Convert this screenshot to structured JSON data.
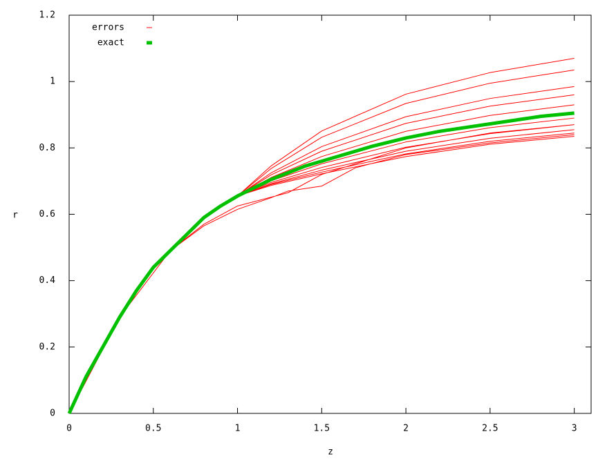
{
  "chart_data": {
    "type": "line",
    "xlabel": "z",
    "ylabel": "r",
    "xlim": [
      0,
      3.1
    ],
    "ylim": [
      0,
      1.2
    ],
    "xticks": [
      0,
      0.5,
      1,
      1.5,
      2,
      2.5,
      3
    ],
    "yticks": [
      0,
      0.2,
      0.4,
      0.6,
      0.8,
      1,
      1.2
    ],
    "legend": "top-left",
    "series": [
      {
        "name": "errors",
        "color": "#ff0000",
        "width": 1,
        "x": [
          0,
          0.3,
          0.6,
          0.8,
          1.0,
          1.2,
          1.5,
          2.0,
          2.5,
          3.0,
          null,
          0,
          0.3,
          0.6,
          0.8,
          1.0,
          1.2,
          1.5,
          2.0,
          2.5,
          3.0,
          null,
          0,
          0.3,
          0.6,
          0.8,
          1.0,
          1.2,
          1.5,
          2.0,
          2.5,
          3.0,
          null,
          0,
          0.3,
          0.6,
          0.8,
          1.0,
          1.2,
          1.5,
          2.0,
          2.5,
          3.0,
          null,
          0,
          0.3,
          0.6,
          0.8,
          1.0,
          1.2,
          1.5,
          2.0,
          2.5,
          3.0,
          null,
          0,
          0.3,
          0.6,
          0.8,
          1.0,
          1.2,
          1.5,
          2.0,
          2.5,
          3.0,
          null,
          0,
          0.3,
          0.6,
          0.8,
          1.0,
          1.2,
          1.5,
          2.0,
          2.5,
          3.0,
          null,
          0,
          0.3,
          0.6,
          0.8,
          1.0,
          1.2,
          1.5,
          2.0,
          2.5,
          3.0,
          null,
          0,
          0.3,
          0.6,
          0.8,
          1.0,
          1.2,
          1.5,
          2.0,
          2.5,
          3.0,
          null,
          0,
          0.3,
          0.6,
          0.8,
          1.0,
          1.2,
          1.5,
          2.0,
          2.5,
          3.0,
          null,
          0,
          0.3,
          0.6,
          0.8,
          1.0,
          1.2,
          1.3,
          1.5,
          1.7,
          2.0,
          2.5,
          3.0,
          null,
          0,
          0.3,
          0.6,
          0.8,
          1.0,
          1.3,
          1.5,
          2.0,
          2.5,
          3.0
        ],
        "values": [
          0,
          0.29,
          0.49,
          0.59,
          0.655,
          0.746,
          0.851,
          0.962,
          1.027,
          1.07,
          null,
          0,
          0.29,
          0.49,
          0.59,
          0.655,
          0.738,
          0.832,
          0.934,
          0.995,
          1.035,
          null,
          0,
          0.29,
          0.49,
          0.59,
          0.655,
          0.725,
          0.804,
          0.894,
          0.949,
          0.985,
          null,
          0,
          0.29,
          0.49,
          0.59,
          0.655,
          0.719,
          0.79,
          0.874,
          0.926,
          0.96,
          null,
          0,
          0.29,
          0.49,
          0.59,
          0.655,
          0.711,
          0.774,
          0.85,
          0.898,
          0.93,
          null,
          0,
          0.29,
          0.49,
          0.59,
          0.655,
          0.701,
          0.752,
          0.818,
          0.861,
          0.89,
          null,
          0,
          0.29,
          0.49,
          0.59,
          0.655,
          0.696,
          0.741,
          0.802,
          0.843,
          0.87,
          null,
          0,
          0.29,
          0.49,
          0.59,
          0.655,
          0.692,
          0.733,
          0.79,
          0.829,
          0.855,
          null,
          0,
          0.29,
          0.49,
          0.59,
          0.655,
          0.69,
          0.727,
          0.782,
          0.82,
          0.845,
          null,
          0,
          0.29,
          0.49,
          0.59,
          0.655,
          0.687,
          0.722,
          0.774,
          0.811,
          0.835,
          null,
          0,
          0.29,
          0.49,
          0.565,
          0.615,
          0.65,
          0.67,
          0.685,
          0.74,
          0.78,
          0.815,
          0.84,
          null,
          0,
          0.29,
          0.49,
          0.57,
          0.625,
          0.665,
          0.72,
          0.8,
          0.845,
          0.87
        ]
      },
      {
        "name": "exact",
        "color": "#00c000",
        "width": 5,
        "x": [
          0,
          0.1,
          0.2,
          0.3,
          0.4,
          0.5,
          0.6,
          0.7,
          0.8,
          0.9,
          1.0,
          1.2,
          1.4,
          1.6,
          1.8,
          2.0,
          2.2,
          2.4,
          2.6,
          2.8,
          3.0
        ],
        "values": [
          0,
          0.11,
          0.2,
          0.29,
          0.37,
          0.44,
          0.49,
          0.54,
          0.59,
          0.625,
          0.655,
          0.705,
          0.745,
          0.775,
          0.805,
          0.83,
          0.85,
          0.865,
          0.88,
          0.895,
          0.905
        ]
      }
    ]
  }
}
